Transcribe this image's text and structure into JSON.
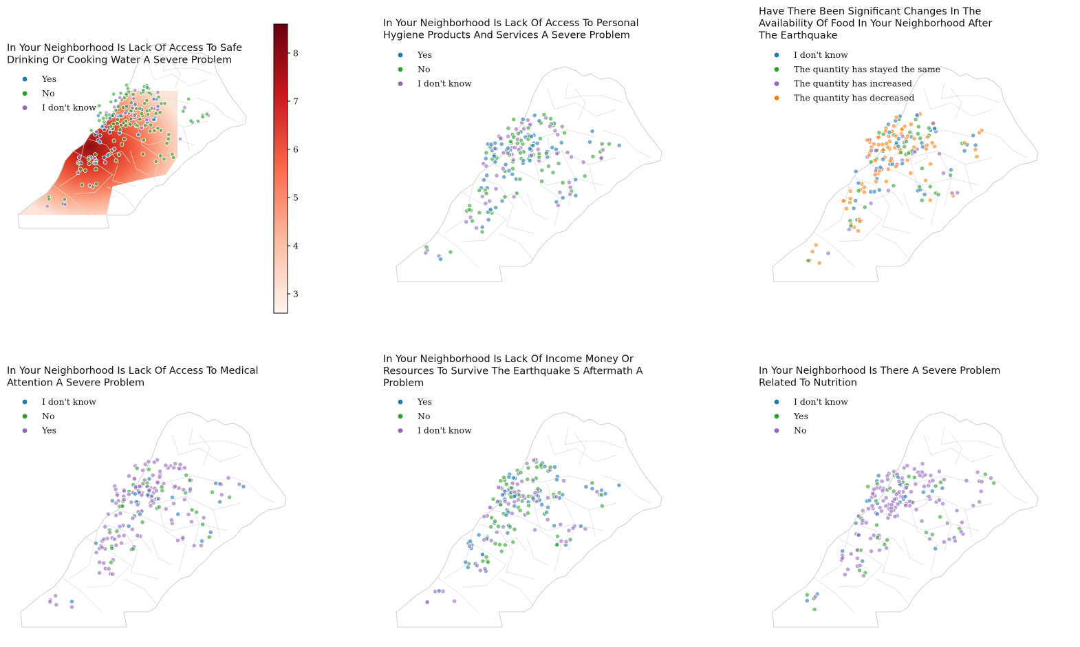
{
  "colorbar": {
    "ticks": [
      3,
      4,
      5,
      6,
      7,
      8
    ],
    "range": [
      2.6,
      8.6
    ],
    "colors": [
      "#fff5f0",
      "#fcbba1",
      "#fb6a4a",
      "#cb181d",
      "#67000d"
    ]
  },
  "category_colors": {
    "blue": "#1f77b4",
    "green": "#2ca02c",
    "purple": "#9467bd",
    "orange": "#ff7f0e"
  },
  "panels": [
    {
      "title_lines": [
        "In Your Neighborhood Is Lack Of Access To Safe",
        "Drinking Or Cooking Water A Severe Problem"
      ],
      "legend": [
        {
          "label": "Yes",
          "color": "#1f77b4"
        },
        {
          "label": "No",
          "color": "#2ca02c"
        },
        {
          "label": "I don't know",
          "color": "#9467bd"
        }
      ],
      "choropleth": true
    },
    {
      "title_lines": [
        "In Your Neighborhood Is Lack Of Access To Personal",
        "Hygiene Products And Services A Severe Problem"
      ],
      "legend": [
        {
          "label": "Yes",
          "color": "#1f77b4"
        },
        {
          "label": "No",
          "color": "#2ca02c"
        },
        {
          "label": "I don't know",
          "color": "#9467bd"
        }
      ],
      "choropleth": false
    },
    {
      "title_lines": [
        "Have There Been Significant Changes In The",
        "Availability Of Food In Your Neighborhood After",
        "The Earthquake"
      ],
      "legend": [
        {
          "label": "I don't know",
          "color": "#1f77b4"
        },
        {
          "label": "The quantity has stayed the same",
          "color": "#2ca02c"
        },
        {
          "label": "The quantity has increased",
          "color": "#9467bd"
        },
        {
          "label": "The quantity has decreased",
          "color": "#ff7f0e"
        }
      ],
      "choropleth": false
    },
    {
      "title_lines": [
        "In Your Neighborhood Is Lack Of Access To Medical",
        "Attention A Severe Problem"
      ],
      "legend": [
        {
          "label": "I don't know",
          "color": "#1f77b4"
        },
        {
          "label": "No",
          "color": "#2ca02c"
        },
        {
          "label": "Yes",
          "color": "#9467bd"
        }
      ],
      "choropleth": false
    },
    {
      "title_lines": [
        "In Your Neighborhood Is Lack Of Income Money Or",
        "Resources To Survive The Earthquake S Aftermath A",
        "Problem"
      ],
      "legend": [
        {
          "label": "Yes",
          "color": "#1f77b4"
        },
        {
          "label": "No",
          "color": "#2ca02c"
        },
        {
          "label": "I don't know",
          "color": "#9467bd"
        }
      ],
      "choropleth": false
    },
    {
      "title_lines": [
        "In Your Neighborhood Is There A Severe Problem",
        "Related To Nutrition"
      ],
      "legend": [
        {
          "label": "I don't know",
          "color": "#1f77b4"
        },
        {
          "label": "Yes",
          "color": "#2ca02c"
        },
        {
          "label": "No",
          "color": "#9467bd"
        }
      ],
      "choropleth": false
    }
  ]
}
